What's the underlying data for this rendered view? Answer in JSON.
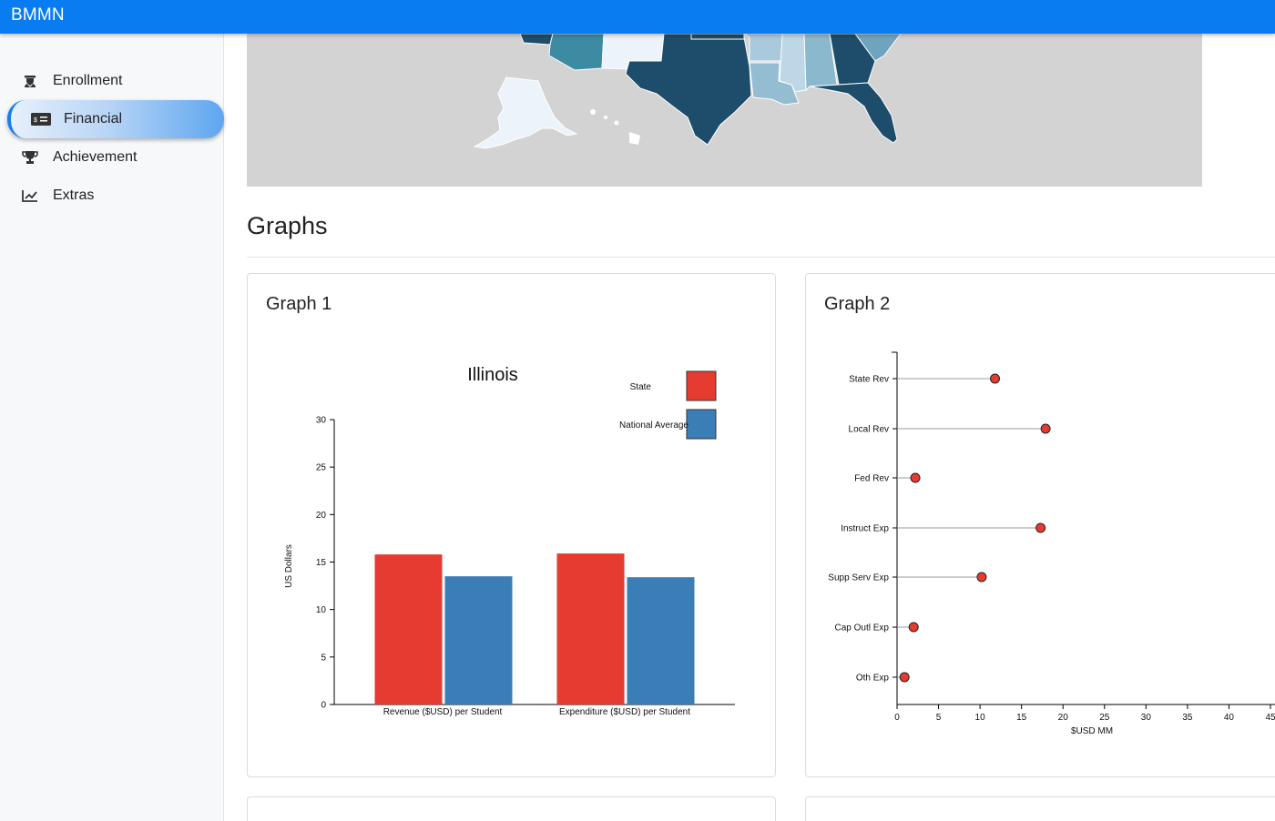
{
  "app": {
    "title": "BMMN"
  },
  "sidebar": {
    "items": [
      {
        "label": "Enrollment",
        "icon": "graduate-icon",
        "active": false
      },
      {
        "label": "Financial",
        "icon": "money-bill-icon",
        "active": true
      },
      {
        "label": "Achievement",
        "icon": "trophy-icon",
        "active": false
      },
      {
        "label": "Extras",
        "icon": "chart-line-icon",
        "active": false
      }
    ]
  },
  "main": {
    "section_title": "Graphs",
    "graph1_title": "Graph 1",
    "graph2_title": "Graph 2"
  },
  "colors": {
    "state": "#e53b30",
    "national": "#3a7db7",
    "appbar": "#0a7cf2"
  },
  "chart_data": [
    {
      "type": "bar",
      "title": "Illinois",
      "categories": [
        "Revenue ($USD) per Student",
        "Expenditure ($USD) per Student"
      ],
      "series": [
        {
          "name": "State",
          "values": [
            15.8,
            15.9
          ],
          "color": "#e53b30"
        },
        {
          "name": "National Average",
          "values": [
            13.5,
            13.4
          ],
          "color": "#3a7db7"
        }
      ],
      "ylabel": "US Dollars",
      "xlabel": "",
      "ylim": [
        0,
        30
      ],
      "yticks": [
        0,
        5,
        10,
        15,
        20,
        25,
        30
      ],
      "legend": "top-right"
    },
    {
      "type": "scatter",
      "subtype": "lollipop",
      "title": "",
      "categories": [
        "State Rev",
        "Local Rev",
        "Fed Rev",
        "Instruct Exp",
        "Supp Serv Exp",
        "Cap Outl Exp",
        "Oth Exp"
      ],
      "values": [
        11.8,
        17.9,
        2.2,
        17.3,
        10.2,
        2.0,
        0.9
      ],
      "xlabel": "$USD MM",
      "ylabel": "",
      "xlim": [
        0,
        45
      ],
      "xticks": [
        0,
        5,
        10,
        15,
        20,
        25,
        30,
        35,
        40,
        45
      ],
      "color": "#e53b30"
    }
  ]
}
